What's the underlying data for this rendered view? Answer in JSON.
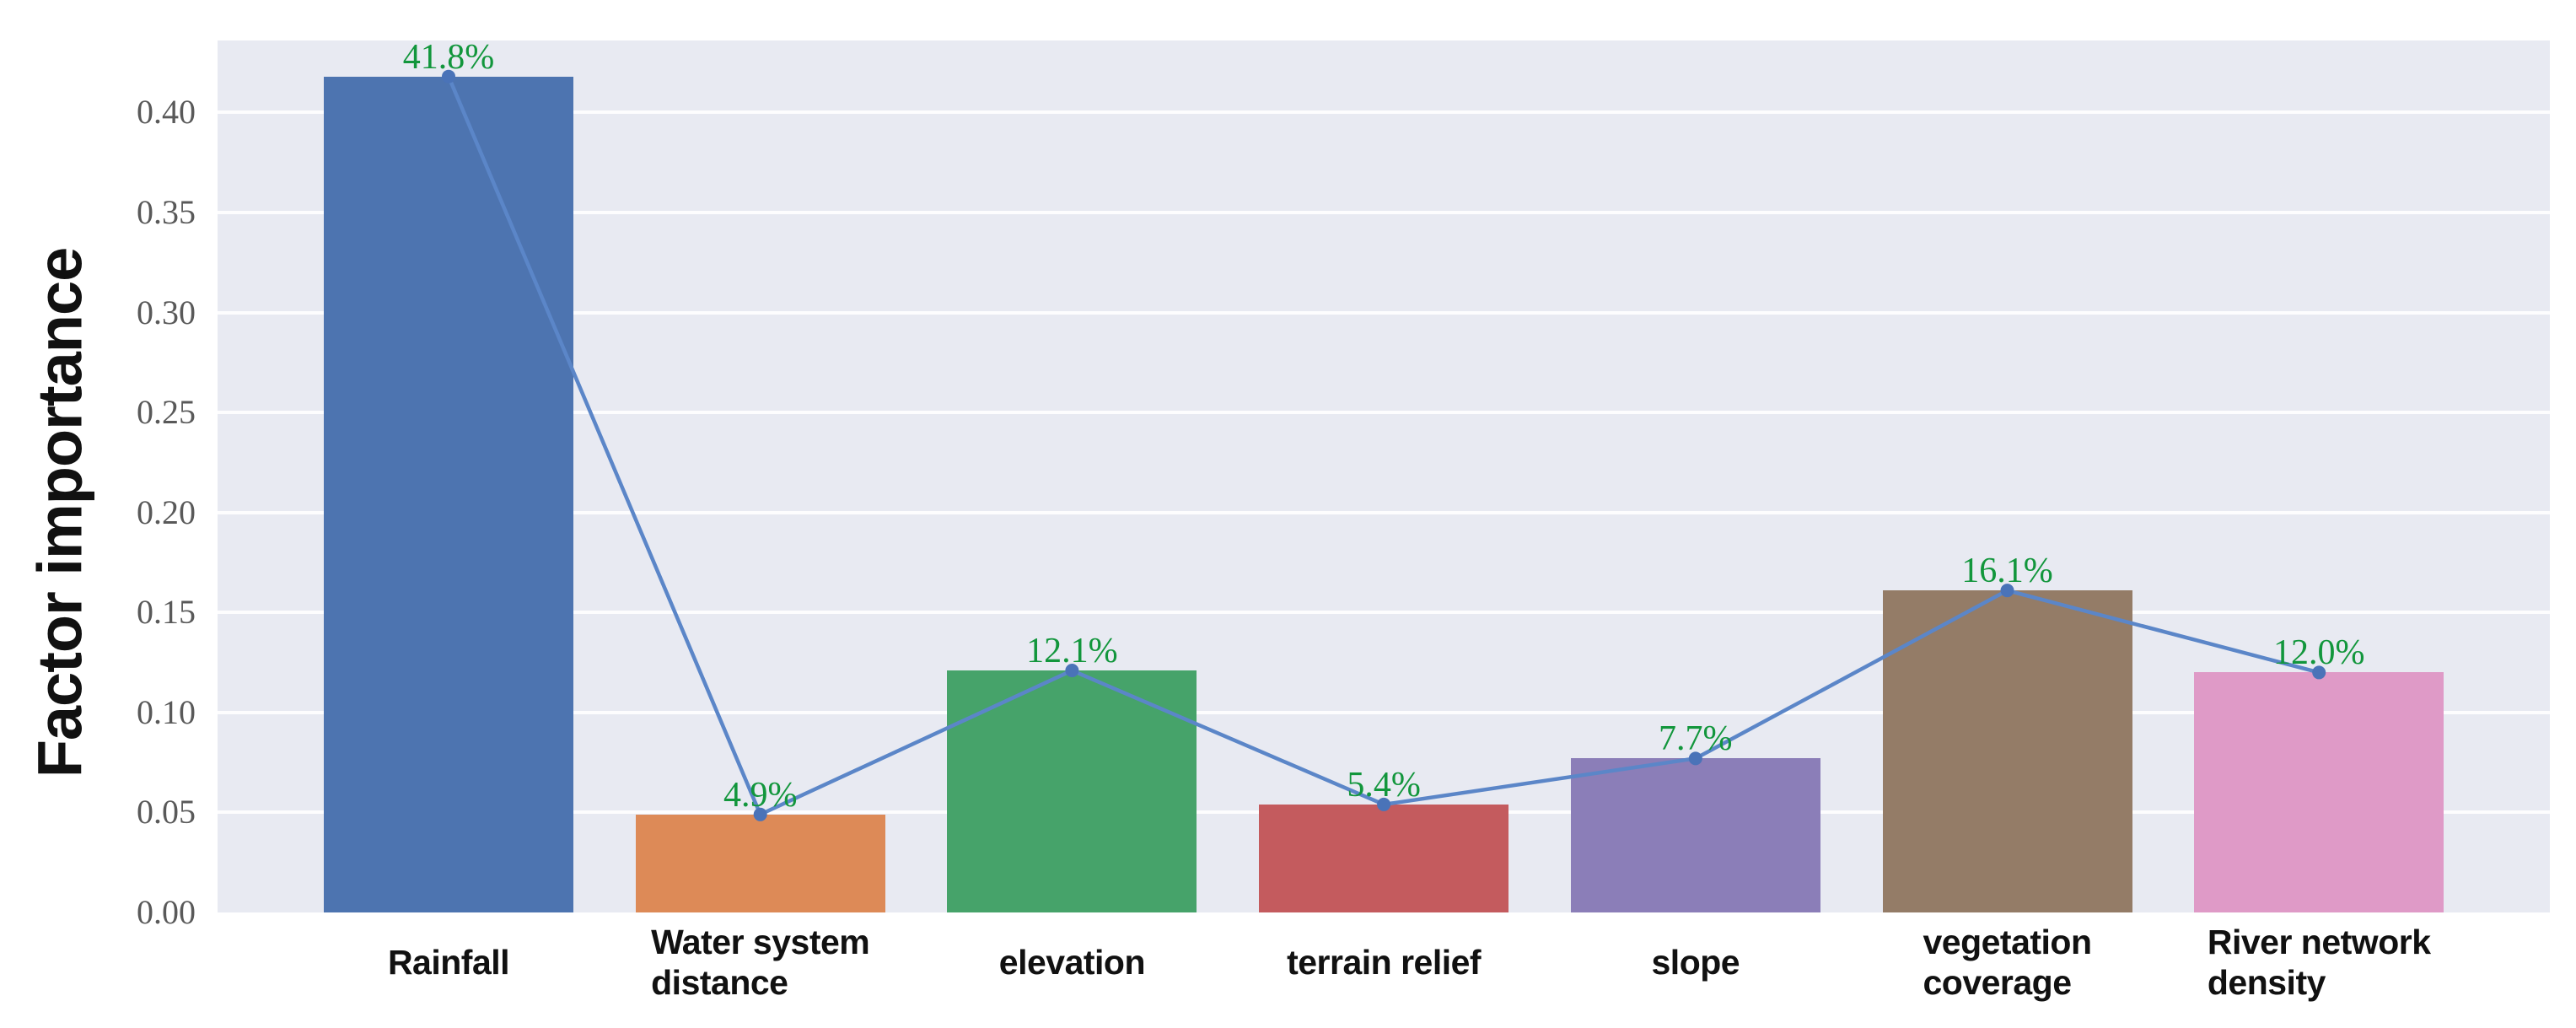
{
  "chart_data": {
    "type": "bar",
    "title": "",
    "xlabel": "",
    "ylabel": "Factor importance",
    "categories": [
      "Rainfall",
      "Water system distance",
      "elevation",
      "terrain relief",
      "slope",
      "vegetation coverage",
      "River network density"
    ],
    "category_lines": [
      [
        "Rainfall"
      ],
      [
        "Water system",
        "distance"
      ],
      [
        "elevation"
      ],
      [
        "terrain relief"
      ],
      [
        "slope"
      ],
      [
        "vegetation",
        "coverage"
      ],
      [
        "River network",
        "density"
      ]
    ],
    "values": [
      0.418,
      0.049,
      0.121,
      0.054,
      0.077,
      0.161,
      0.12
    ],
    "data_labels": [
      "41.8%",
      "4.9%",
      "12.1%",
      "5.4%",
      "7.7%",
      "16.1%",
      "12.0%"
    ],
    "bar_colors": [
      "#4d74b0",
      "#dd8a57",
      "#46a36a",
      "#c45b5e",
      "#8b7eb8",
      "#947c67",
      "#df9ac7"
    ],
    "yticks": [
      0.0,
      0.05,
      0.1,
      0.15,
      0.2,
      0.25,
      0.3,
      0.35,
      0.4
    ],
    "ytick_labels": [
      "0.00",
      "0.05",
      "0.10",
      "0.15",
      "0.20",
      "0.25",
      "0.30",
      "0.35",
      "0.40"
    ],
    "ylim": [
      0,
      0.436
    ],
    "grid": true,
    "legend": "none",
    "line_overlay": {
      "type": "line",
      "values": [
        0.418,
        0.049,
        0.121,
        0.054,
        0.077,
        0.161,
        0.12
      ],
      "color": "#5b86c8",
      "marker_color": "#4a73b8"
    }
  },
  "style": {
    "page_bg": "#ffffff",
    "plot_bg": "#e8eaf2",
    "grid_color": "#ffffff",
    "tick_label_color": "#595959",
    "category_label_color": "#111111",
    "data_label_color": "#12963c",
    "ylabel_color": "#111111"
  }
}
